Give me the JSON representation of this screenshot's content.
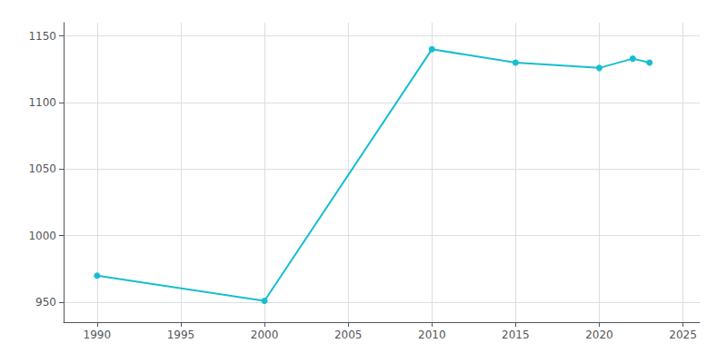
{
  "chart_data": {
    "type": "line",
    "x": [
      1990,
      2000,
      2010,
      2015,
      2020,
      2022,
      2023
    ],
    "values": [
      970,
      951,
      1140,
      1130,
      1126,
      1133,
      1130
    ],
    "color": "#17becf",
    "marker": "circle",
    "xlim": [
      1988,
      2026
    ],
    "ylim": [
      935,
      1160
    ],
    "xticks": [
      1990,
      1995,
      2000,
      2005,
      2010,
      2015,
      2020,
      2025
    ],
    "yticks": [
      950,
      1000,
      1050,
      1100,
      1150
    ],
    "grid": true
  }
}
